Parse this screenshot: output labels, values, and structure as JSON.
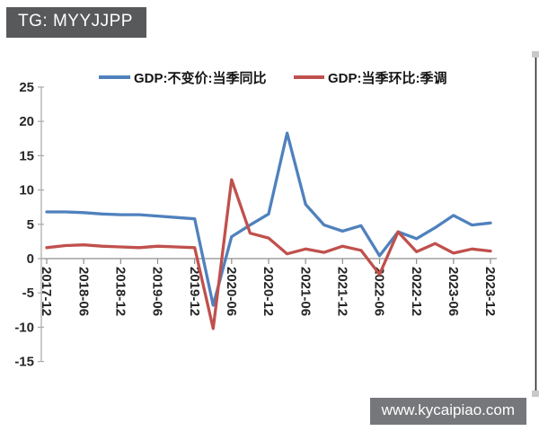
{
  "badge": {
    "text": "TG: MYYJJPP"
  },
  "watermark": {
    "text": "www.kycaipiao.com"
  },
  "chart_data": {
    "type": "line",
    "x": [
      "2017-12",
      "2018-03",
      "2018-06",
      "2018-09",
      "2018-12",
      "2019-03",
      "2019-06",
      "2019-09",
      "2019-12",
      "2020-03",
      "2020-06",
      "2020-09",
      "2020-12",
      "2021-03",
      "2021-06",
      "2021-09",
      "2021-12",
      "2022-03",
      "2022-06",
      "2022-09",
      "2022-12",
      "2023-03",
      "2023-06",
      "2023-09",
      "2023-12"
    ],
    "x_tick_every": 2,
    "ylim": [
      -15,
      25
    ],
    "ytick_step": 5,
    "yticks": [
      25,
      20,
      15,
      10,
      5,
      0,
      -5,
      -10,
      -15
    ],
    "grid": false,
    "legend_position": "top-center",
    "series": [
      {
        "name": "GDP:不变价:当季同比",
        "color": "#4f81bd",
        "values": [
          6.8,
          6.8,
          6.7,
          6.5,
          6.4,
          6.4,
          6.2,
          6.0,
          5.8,
          -6.8,
          3.2,
          4.9,
          6.5,
          18.3,
          7.9,
          4.9,
          4.0,
          4.8,
          0.4,
          3.9,
          2.9,
          4.5,
          6.3,
          4.9,
          5.2
        ]
      },
      {
        "name": "GDP:当季环比:季调",
        "color": "#c0504d",
        "values": [
          1.6,
          1.9,
          2.0,
          1.8,
          1.7,
          1.6,
          1.8,
          1.7,
          1.6,
          -10.2,
          11.5,
          3.7,
          3.0,
          0.7,
          1.4,
          0.9,
          1.8,
          1.2,
          -2.3,
          3.9,
          1.0,
          2.2,
          0.8,
          1.4,
          1.1
        ]
      }
    ],
    "axis_color": "#a8a8a8",
    "tick_label_color": "#262626"
  }
}
